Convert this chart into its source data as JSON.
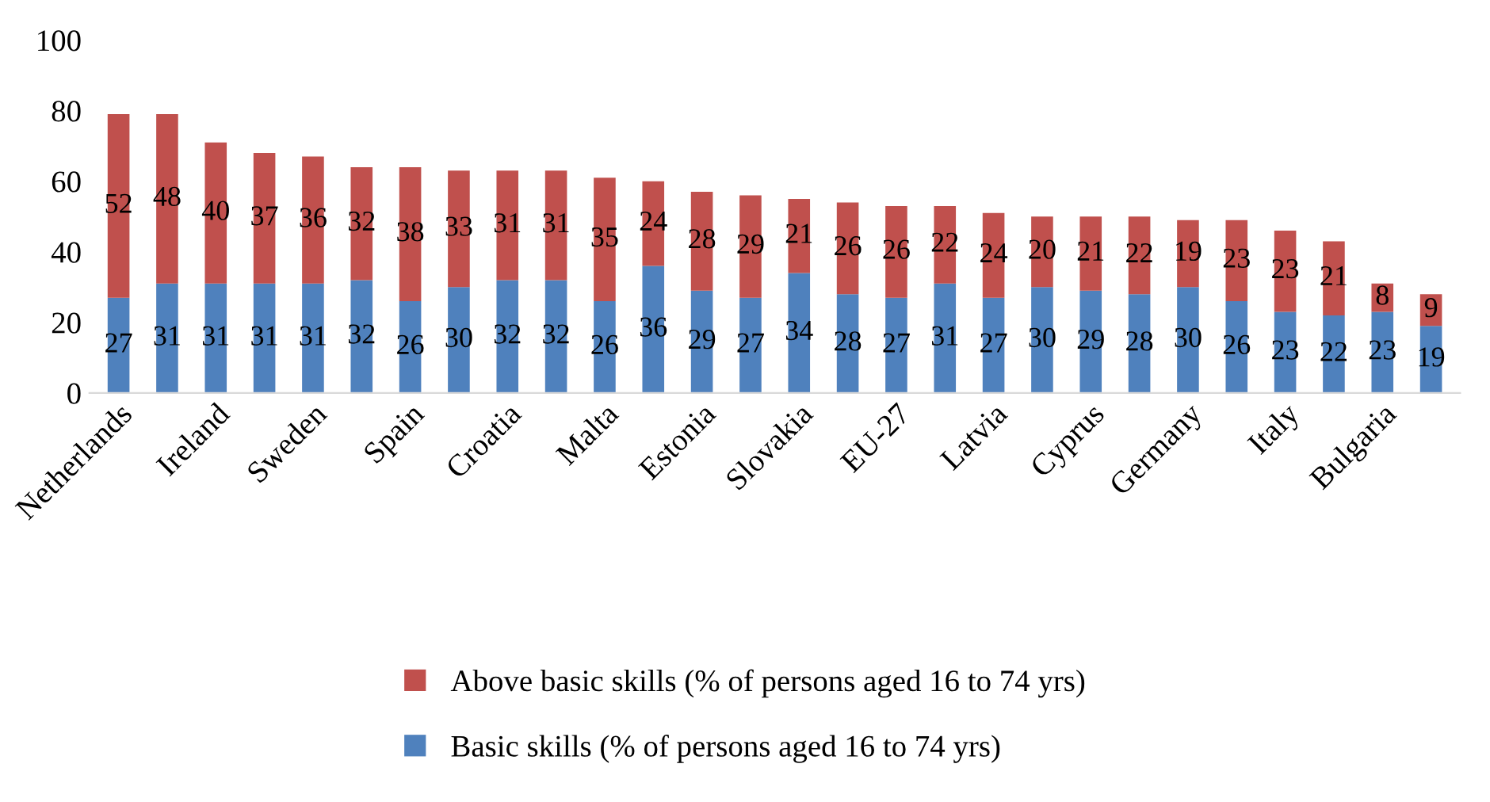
{
  "chart_data": {
    "type": "bar",
    "stacked": true,
    "categories": [
      "Netherlands",
      null,
      "Ireland",
      null,
      "Sweden",
      null,
      "Spain",
      null,
      "Croatia",
      null,
      "Malta",
      null,
      "Estonia",
      null,
      "Slovakia",
      null,
      "EU-27",
      null,
      "Latvia",
      null,
      "Cyprus",
      null,
      "Germany",
      null,
      "Italy",
      null,
      "Bulgaria",
      null
    ],
    "series": [
      {
        "name": "Basic skills (% of persons aged 16 to 74 yrs)",
        "color": "#4f81bd",
        "values": [
          27,
          31,
          31,
          31,
          31,
          32,
          26,
          30,
          32,
          32,
          26,
          36,
          29,
          27,
          34,
          28,
          27,
          31,
          27,
          30,
          29,
          28,
          30,
          26,
          23,
          22,
          23,
          19
        ]
      },
      {
        "name": "Above basic skills (% of persons aged 16 to 74 yrs)",
        "color": "#c0504d",
        "values": [
          52,
          48,
          40,
          37,
          36,
          32,
          38,
          33,
          31,
          31,
          35,
          24,
          28,
          29,
          21,
          26,
          26,
          22,
          24,
          20,
          21,
          22,
          19,
          23,
          23,
          21,
          8,
          9
        ]
      }
    ],
    "ylim": [
      0,
      100
    ],
    "yticks": [
      0,
      20,
      40,
      60,
      80,
      100
    ],
    "grid": false,
    "legend": "bottom",
    "data_labels": true
  }
}
